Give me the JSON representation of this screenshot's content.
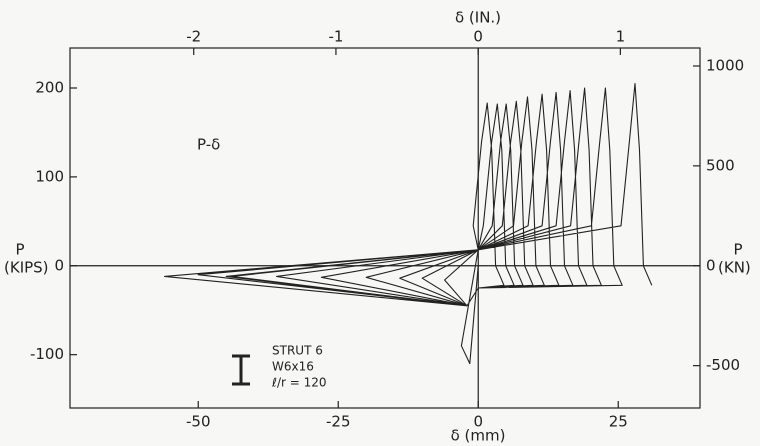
{
  "chart_data": {
    "type": "line",
    "xlabel": "δ (mm)",
    "x2label": "δ (IN.)",
    "ylabel": [
      "P",
      "(KIPS)"
    ],
    "y2label": [
      "P",
      "(KN)"
    ],
    "annotations": [
      "P-δ",
      "STRUT 6",
      "W6x16",
      "ℓ/r = 120"
    ],
    "xlim": [
      -72.9,
      39.6
    ],
    "xticks": [
      -50,
      -25,
      0,
      25
    ],
    "x2lim": [
      -2.87,
      1.56
    ],
    "x2ticks": [
      -2,
      -1,
      0,
      1
    ],
    "ylim": [
      -160,
      245
    ],
    "yticks": [
      -100,
      0,
      100,
      200
    ],
    "y2lim": [
      -712,
      1090
    ],
    "y2ticks": [
      -500,
      0,
      500,
      1000
    ],
    "x": [
      0,
      -1.5,
      -3,
      0,
      -0.9,
      0.6,
      1.6,
      2.4,
      3.1,
      4.6,
      0,
      -2,
      -6,
      0,
      0.9,
      2.4,
      3.4,
      4.2,
      4.9,
      6.4,
      0,
      -2,
      -10,
      0,
      2.5,
      4,
      5,
      5.8,
      6.5,
      8,
      0,
      -2,
      -14,
      0,
      4.3,
      5.8,
      6.8,
      7.6,
      8.3,
      9.8,
      0,
      -2,
      -20,
      0,
      6.3,
      7.8,
      8.8,
      9.6,
      10.3,
      11.8,
      0,
      -2,
      -28,
      0,
      8.9,
      10.4,
      11.4,
      12.2,
      12.9,
      14.4,
      0,
      -2,
      -36,
      0,
      11.4,
      12.9,
      13.9,
      14.7,
      15.4,
      16.9,
      0,
      -2,
      -44,
      0,
      13.9,
      15.4,
      16.4,
      17.2,
      17.9,
      19.4,
      0,
      -2,
      -56,
      0,
      16.5,
      18,
      19,
      19.8,
      20.5,
      22,
      0,
      -2,
      -50,
      0,
      20.2,
      21.7,
      22.7,
      23.5,
      24.2,
      25.7,
      0,
      -2,
      -45,
      0,
      25.5,
      27,
      28,
      28.8,
      29.5,
      31
    ],
    "series": [
      {
        "color": "#222222",
        "values": [
          0,
          -110,
          -90,
          18,
          45,
          140,
          183,
          130,
          0,
          -22,
          -25,
          -45,
          -16,
          18,
          45,
          140,
          182,
          130,
          0,
          -22,
          -25,
          -45,
          -14,
          18,
          45,
          140,
          182,
          130,
          0,
          -22,
          -25,
          -45,
          -14,
          18,
          45,
          140,
          185,
          130,
          0,
          -22,
          -25,
          -45,
          -13,
          18,
          45,
          140,
          190,
          130,
          0,
          -22,
          -25,
          -45,
          -13,
          18,
          45,
          140,
          193,
          130,
          0,
          -22,
          -25,
          -45,
          -12,
          18,
          45,
          140,
          195,
          130,
          0,
          -22,
          -25,
          -45,
          -12,
          18,
          45,
          140,
          197,
          130,
          0,
          -22,
          -25,
          -45,
          -12,
          18,
          45,
          140,
          200,
          130,
          0,
          -22,
          -25,
          -45,
          -10,
          18,
          45,
          140,
          200,
          130,
          0,
          -22,
          -25,
          -45,
          -12,
          18,
          45,
          140,
          205,
          130,
          0,
          -22
        ]
      }
    ]
  }
}
